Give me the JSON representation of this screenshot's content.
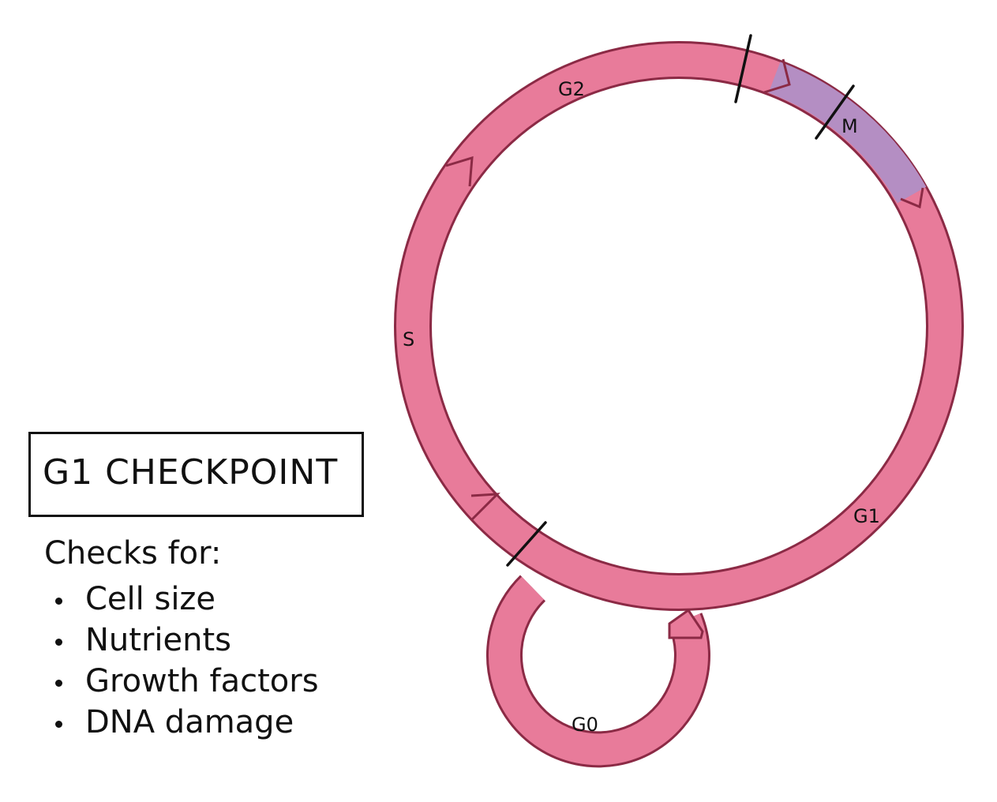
{
  "diagram": {
    "phases": {
      "g2": "G2",
      "m": "M",
      "s": "S",
      "g1": "G1",
      "g0": "G0"
    },
    "colors": {
      "ring_fill": "#e87b9a",
      "ring_outline": "#8b2a45",
      "m_phase_fill": "#b48ec3",
      "marker": "#111111"
    }
  },
  "panel": {
    "title": "G1 CHECKPOINT",
    "heading": "Checks for:",
    "items": [
      "Cell size",
      "Nutrients",
      "Growth factors",
      "DNA damage"
    ]
  }
}
